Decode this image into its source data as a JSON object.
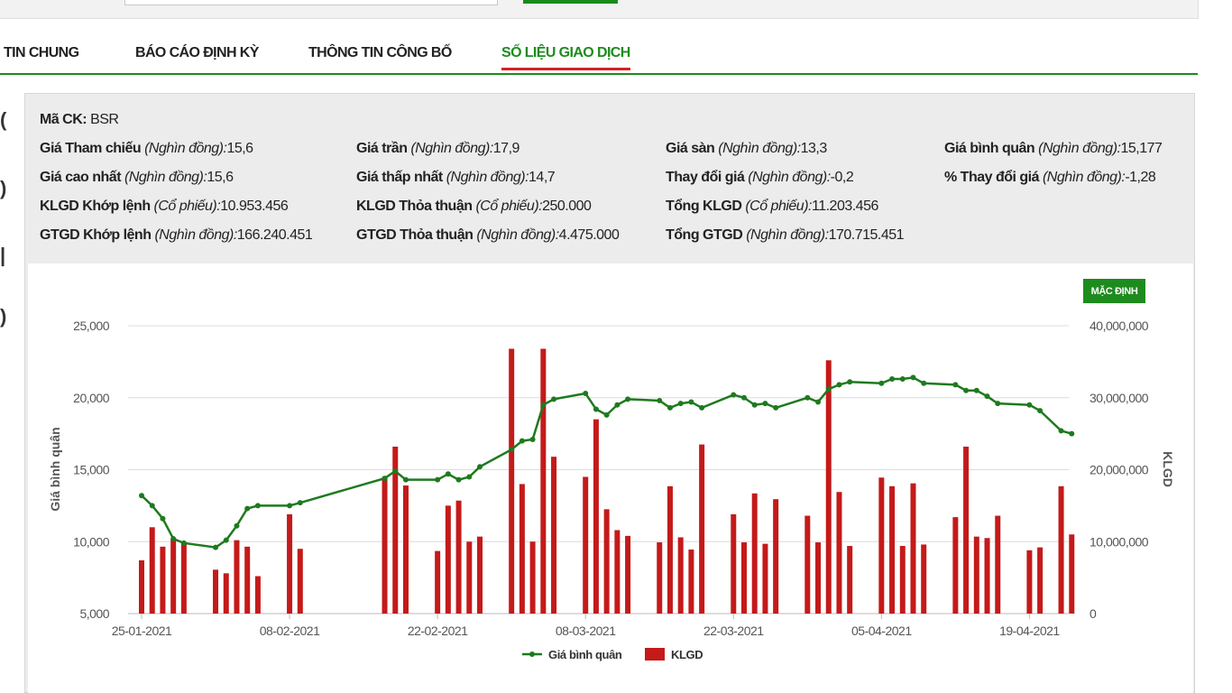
{
  "tabs": [
    "TIN CHUNG",
    "BÁO CÁO ĐỊNH KỲ",
    "THÔNG TIN CÔNG BỐ",
    "SỐ LIỆU GIAO DỊCH"
  ],
  "info": {
    "ma_ck_label": "Mã CK:",
    "ma_ck_value": "BSR",
    "rows": [
      {
        "label": "Giá Tham chiếu",
        "unit": "(Nghìn đồng):",
        "value": "15,6"
      },
      {
        "label": "Giá trần",
        "unit": "(Nghìn đồng):",
        "value": "17,9"
      },
      {
        "label": "Giá sàn",
        "unit": "(Nghìn đồng):",
        "value": "13,3"
      },
      {
        "label": "Giá bình quân",
        "unit": "(Nghìn đồng):",
        "value": "15,177"
      },
      {
        "label": "Giá cao nhất",
        "unit": "(Nghìn đồng):",
        "value": "15,6"
      },
      {
        "label": "Giá thấp nhất",
        "unit": "(Nghìn đồng):",
        "value": "14,7"
      },
      {
        "label": "Thay đổi giá",
        "unit": "(Nghìn đồng):",
        "value": "-0,2"
      },
      {
        "label": "% Thay đổi giá",
        "unit": "(Nghìn đồng):",
        "value": "-1,28"
      },
      {
        "label": "KLGD Khớp lệnh",
        "unit": "(Cổ phiếu):",
        "value": "10.953.456"
      },
      {
        "label": "KLGD Thỏa thuận",
        "unit": "(Cổ phiếu):",
        "value": "250.000"
      },
      {
        "label": "Tổng KLGD",
        "unit": "(Cổ phiếu):",
        "value": "11.203.456"
      },
      {
        "label": "GTGD Khớp lệnh",
        "unit": "(Nghìn đồng):",
        "value": "166.240.451"
      },
      {
        "label": "GTGD Thỏa thuận",
        "unit": "(Nghìn đồng):",
        "value": "4.475.000"
      },
      {
        "label": "Tổng GTGD",
        "unit": "(Nghìn đồng):",
        "value": "170.715.451"
      }
    ]
  },
  "button_label": "MẶC ĐỊNH",
  "colors": {
    "accent": "#1e8b1e",
    "bar": "#c41a1a",
    "line": "#1e7a1e",
    "tab_underline": "#d32020"
  },
  "chart_data": {
    "type": "bar+line",
    "xlabel": "",
    "ylabel_left": "Giá bình quân",
    "ylabel_right": "KLGD",
    "ylim_left": [
      5000,
      25000
    ],
    "ylim_right": [
      0,
      40000000
    ],
    "yticks_left": [
      "5,000",
      "10,000",
      "15,000",
      "20,000",
      "25,000"
    ],
    "yticks_right": [
      "0",
      "10,000,000",
      "20,000,000",
      "30,000,000",
      "40,000,000"
    ],
    "xticks": [
      "25-01-2021",
      "08-02-2021",
      "22-02-2021",
      "08-03-2021",
      "22-03-2021",
      "05-04-2021",
      "19-04-2021"
    ],
    "legend": [
      "Giá bình quân",
      "KLGD"
    ],
    "legend_position": "bottom",
    "x": [
      "2021-01-25",
      "2021-01-26",
      "2021-01-27",
      "2021-01-28",
      "2021-01-29",
      "2021-02-01",
      "2021-02-02",
      "2021-02-03",
      "2021-02-04",
      "2021-02-05",
      "2021-02-08",
      "2021-02-09",
      "2021-02-17",
      "2021-02-18",
      "2021-02-19",
      "2021-02-22",
      "2021-02-23",
      "2021-02-24",
      "2021-02-25",
      "2021-02-26",
      "2021-03-01",
      "2021-03-02",
      "2021-03-03",
      "2021-03-04",
      "2021-03-05",
      "2021-03-08",
      "2021-03-09",
      "2021-03-10",
      "2021-03-11",
      "2021-03-12",
      "2021-03-15",
      "2021-03-16",
      "2021-03-17",
      "2021-03-18",
      "2021-03-19",
      "2021-03-22",
      "2021-03-23",
      "2021-03-24",
      "2021-03-25",
      "2021-03-26",
      "2021-03-29",
      "2021-03-30",
      "2021-03-31",
      "2021-04-01",
      "2021-04-02",
      "2021-04-05",
      "2021-04-06",
      "2021-04-07",
      "2021-04-08",
      "2021-04-09",
      "2021-04-12",
      "2021-04-13",
      "2021-04-14",
      "2021-04-15",
      "2021-04-16",
      "2021-04-19",
      "2021-04-20",
      "2021-04-22",
      "2021-04-23"
    ],
    "series": [
      {
        "name": "KLGD",
        "type": "bar",
        "axis": "right",
        "values": [
          7400000,
          12000000,
          9300000,
          10300000,
          9900000,
          6100000,
          5600000,
          10200000,
          9300000,
          5200000,
          13800000,
          9000000,
          19000000,
          23200000,
          17800000,
          8700000,
          15000000,
          15700000,
          10000000,
          10700000,
          36800000,
          18000000,
          10000000,
          36800000,
          21800000,
          19000000,
          27000000,
          14500000,
          11600000,
          10800000,
          9900000,
          17700000,
          10600000,
          8900000,
          23500000,
          13800000,
          9900000,
          16700000,
          9700000,
          15900000,
          13600000,
          9900000,
          35200000,
          16900000,
          9400000,
          18900000,
          17700000,
          9400000,
          18100000,
          9600000,
          13400000,
          23200000,
          10700000,
          10500000,
          13600000,
          8800000,
          9200000,
          17700000,
          11000000
        ]
      },
      {
        "name": "Giá bình quân",
        "type": "line",
        "axis": "left",
        "values": [
          13200,
          12500,
          11600,
          10200,
          9900,
          9600,
          10100,
          11100,
          12300,
          12500,
          12500,
          12700,
          14400,
          14900,
          14300,
          14300,
          14700,
          14300,
          14500,
          15200,
          16400,
          17000,
          17100,
          19500,
          19900,
          20300,
          19200,
          18800,
          19500,
          19900,
          19800,
          19300,
          19600,
          19700,
          19300,
          20200,
          20000,
          19500,
          19600,
          19300,
          20000,
          19700,
          20600,
          20900,
          21100,
          21000,
          21300,
          21300,
          21400,
          21000,
          20900,
          20500,
          20500,
          20100,
          19600,
          19500,
          19100,
          17700,
          17500
        ]
      }
    ]
  }
}
